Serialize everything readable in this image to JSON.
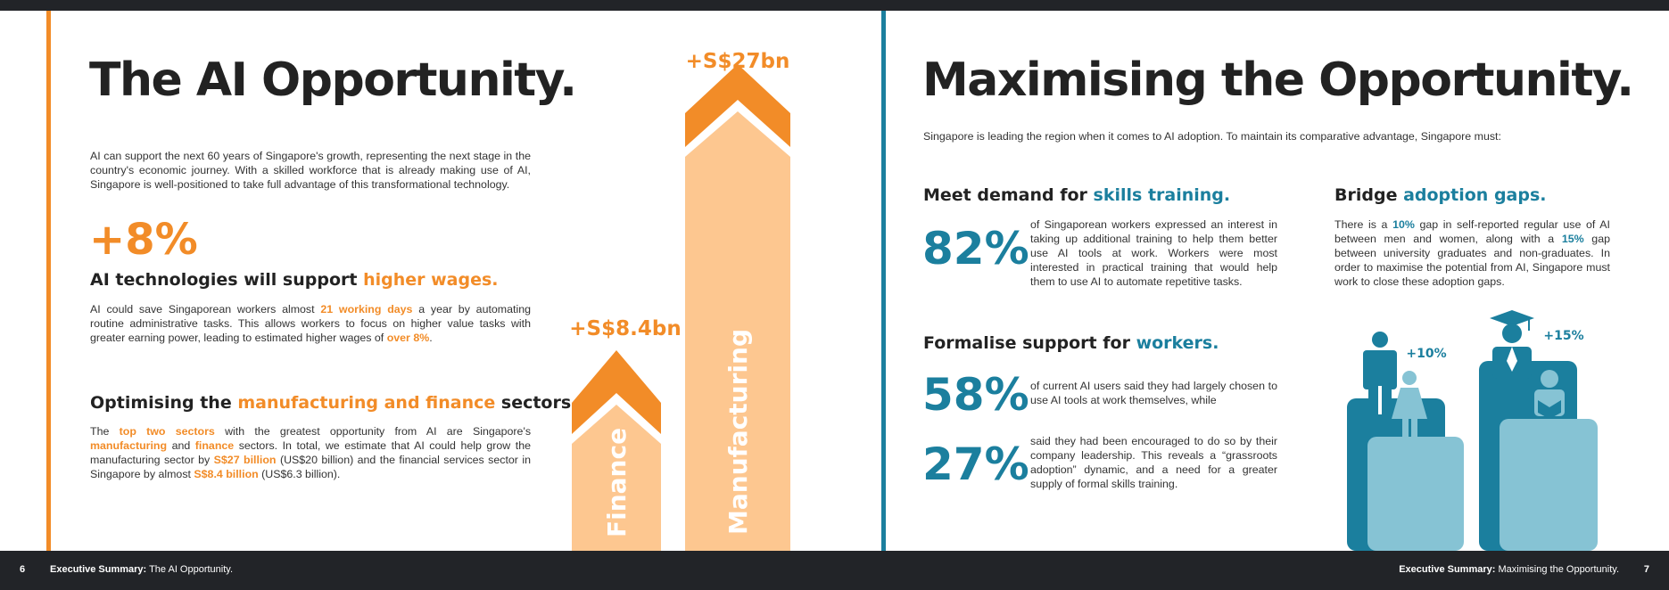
{
  "colors": {
    "orange": "#f28c28",
    "light_orange": "#fdc790",
    "teal": "#1b7f9e",
    "light_teal": "#86c3d4",
    "dark": "#222428"
  },
  "left_page": {
    "title": "The AI Opportunity.",
    "intro": "AI can support the next 60 years of Singapore's growth, representing the next stage in the country's economic journey. With a skilled workforce that is already making use of AI, Singapore is well-positioned to take full advantage of this transformational technology.",
    "stat": "+8%",
    "wages": {
      "heading_a": "AI technologies will support ",
      "heading_b": "higher wages.",
      "p1": "AI could save Singaporean workers almost ",
      "hl1": "21 working days",
      "p2": " a year by automating routine administrative tasks. This allows workers to focus on higher value tasks with greater earning power, leading to estimated higher wages of ",
      "hl2": "over 8%",
      "p3": "."
    },
    "sectors": {
      "heading_a": "Optimising the ",
      "heading_b": "manufacturing and finance",
      "heading_c": " sectors.",
      "p1": "The ",
      "hl1": "top two sectors",
      "p2": " with the greatest opportunity from AI are Singapore's ",
      "hl2": "manufacturing",
      "p3": " and ",
      "hl3": "finance",
      "p4": " sectors. In total, we estimate that AI could help grow the manufacturing sector by ",
      "hl4": "S$27 billion",
      "p5": " (US$20 billion) and the financial services sector in Singapore by almost ",
      "hl5": "S$8.4 billion",
      "p6": " (US$6.3 billion)."
    },
    "arrows": {
      "finance_value": "+S$8.4bn",
      "finance_label": "Finance",
      "manufacturing_value": "+S$27bn",
      "manufacturing_label": "Manufacturing"
    }
  },
  "right_page": {
    "title": "Maximising the Opportunity.",
    "intro": "Singapore is leading the region when it comes to AI adoption. To maintain its comparative advantage, Singapore must:",
    "skills": {
      "heading_a": "Meet demand for ",
      "heading_b": "skills training.",
      "stat": "82%",
      "text": "of Singaporean workers expressed an interest in taking up additional training to help them better use AI tools at work. Workers were most interested in practical training that would help them to use AI to automate repetitive tasks."
    },
    "workers": {
      "heading_a": "Formalise support for ",
      "heading_b": "workers.",
      "stat1": "58%",
      "text1": "of current AI users said they had largely chosen to use AI tools at work themselves, while",
      "stat2": "27%",
      "text2": "said they had been encouraged to do so by their company leadership. This reveals a “grassroots adoption” dynamic, and a need for a greater supply of formal skills training."
    },
    "gaps": {
      "heading_a": "Bridge ",
      "heading_b": "adoption gaps.",
      "p1": "There is a ",
      "hl1": "10%",
      "p2": " gap in self-reported regular use of AI between men and women, along with a ",
      "hl2": "15%",
      "p3": " gap between university graduates and non-graduates. In order to maximise the potential from AI, Singapore must work to close these adoption gaps.",
      "gender_gap_label": "+10%",
      "education_gap_label": "+15%"
    }
  },
  "footer": {
    "left_page_num": "6",
    "left_label_bold": "Executive Summary:",
    "left_label": " The AI Opportunity.",
    "right_label_bold": "Executive Summary:",
    "right_label": " Maximising the Opportunity.",
    "right_page_num": "7"
  }
}
